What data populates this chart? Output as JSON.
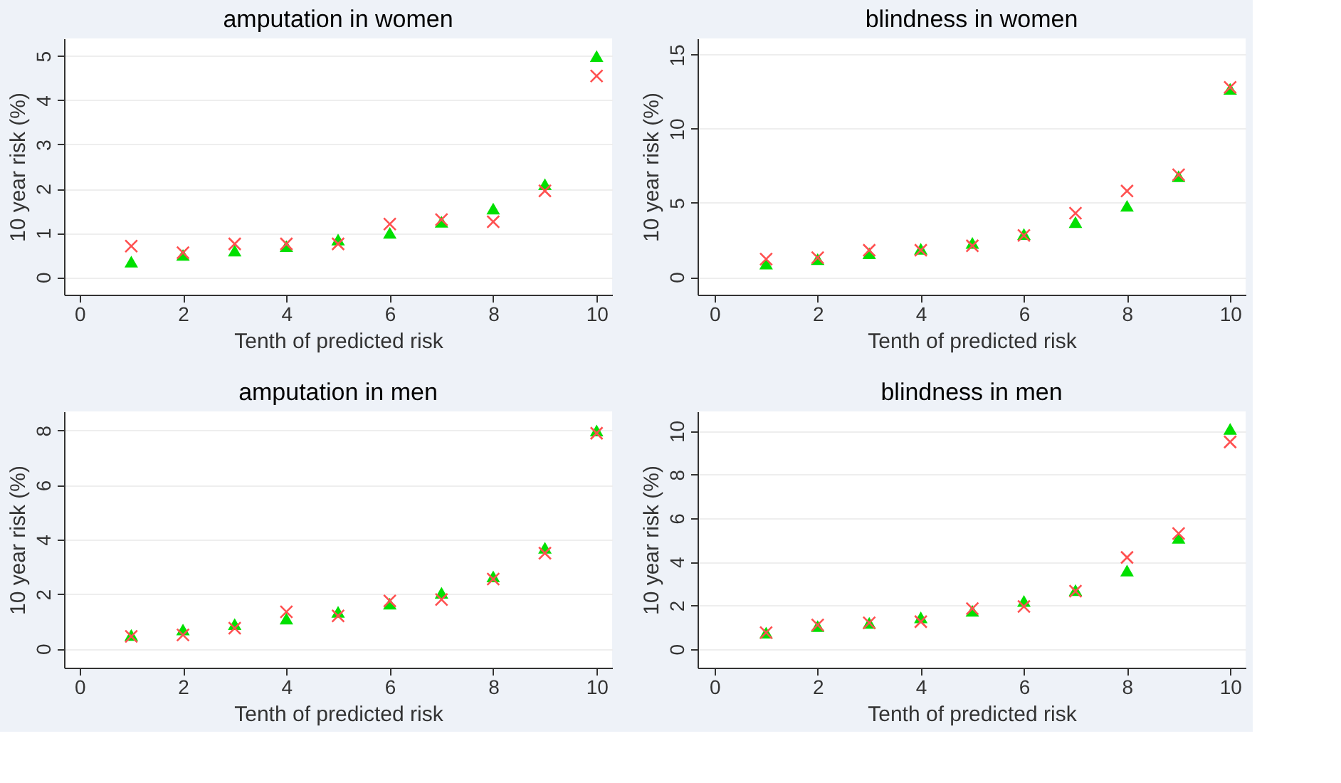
{
  "chart_data": [
    {
      "type": "scatter",
      "title": "amputation in women",
      "xlabel": "Tenth of predicted risk",
      "ylabel": "10 year risk (%)",
      "x": [
        1,
        2,
        3,
        4,
        5,
        6,
        7,
        8,
        9,
        10
      ],
      "xlim": [
        -0.3,
        10.3
      ],
      "xticks": [
        0,
        2,
        4,
        6,
        8,
        10
      ],
      "ylim": [
        -0.4,
        5.4
      ],
      "yticks": [
        0,
        1,
        2,
        3,
        4,
        5
      ],
      "grid": "y",
      "series": [
        {
          "color": "#00e000",
          "marker": "triangle",
          "values": [
            0.35,
            0.5,
            0.6,
            0.7,
            0.85,
            1.0,
            1.25,
            1.55,
            2.1,
            5.0
          ]
        },
        {
          "color": "#ff5050",
          "marker": "cross",
          "values": [
            0.7,
            0.55,
            0.75,
            0.75,
            0.75,
            1.2,
            1.3,
            1.25,
            1.95,
            4.55
          ]
        }
      ]
    },
    {
      "type": "scatter",
      "title": "blindness in women",
      "xlabel": "Tenth of predicted risk",
      "ylabel": "10 year risk (%)",
      "x": [
        1,
        2,
        3,
        4,
        5,
        6,
        7,
        8,
        9,
        10
      ],
      "xlim": [
        -0.33,
        10.3
      ],
      "xticks": [
        0,
        2,
        4,
        6,
        8,
        10
      ],
      "ylim": [
        -1.2,
        16.1
      ],
      "yticks": [
        0,
        5,
        10,
        15
      ],
      "grid": "y",
      "series": [
        {
          "color": "#00e000",
          "marker": "triangle",
          "values": [
            0.9,
            1.2,
            1.6,
            1.9,
            2.3,
            2.9,
            3.7,
            4.8,
            6.8,
            12.7
          ]
        },
        {
          "color": "#ff5050",
          "marker": "cross",
          "values": [
            1.2,
            1.3,
            1.8,
            1.8,
            2.1,
            2.8,
            4.3,
            5.8,
            6.9,
            12.8
          ]
        }
      ]
    },
    {
      "type": "scatter",
      "title": "amputation in men",
      "xlabel": "Tenth of predicted risk",
      "ylabel": "10 year risk (%)",
      "x": [
        1,
        2,
        3,
        4,
        5,
        6,
        7,
        8,
        9,
        10
      ],
      "xlim": [
        -0.3,
        10.3
      ],
      "xticks": [
        0,
        2,
        4,
        6,
        8,
        10
      ],
      "ylim": [
        -0.7,
        8.7
      ],
      "yticks": [
        0,
        2,
        4,
        6,
        8
      ],
      "grid": "y",
      "series": [
        {
          "color": "#00e000",
          "marker": "triangle",
          "values": [
            0.5,
            0.7,
            0.9,
            1.1,
            1.35,
            1.65,
            2.05,
            2.65,
            3.7,
            8.0
          ]
        },
        {
          "color": "#ff5050",
          "marker": "cross",
          "values": [
            0.45,
            0.5,
            0.75,
            1.35,
            1.2,
            1.75,
            1.8,
            2.55,
            3.5,
            7.9
          ]
        }
      ]
    },
    {
      "type": "scatter",
      "title": "blindness in men",
      "xlabel": "Tenth of predicted risk",
      "ylabel": "10 year risk (%)",
      "x": [
        1,
        2,
        3,
        4,
        5,
        6,
        7,
        8,
        9,
        10
      ],
      "xlim": [
        -0.33,
        10.3
      ],
      "xticks": [
        0,
        2,
        4,
        6,
        8,
        10
      ],
      "ylim": [
        -0.86,
        10.9
      ],
      "yticks": [
        0,
        2,
        4,
        6,
        8,
        10
      ],
      "grid": "y",
      "series": [
        {
          "color": "#00e000",
          "marker": "triangle",
          "values": [
            0.75,
            1.05,
            1.2,
            1.45,
            1.75,
            2.2,
            2.7,
            3.6,
            5.1,
            10.1
          ]
        },
        {
          "color": "#ff5050",
          "marker": "cross",
          "values": [
            0.75,
            1.1,
            1.2,
            1.25,
            1.85,
            1.95,
            2.65,
            4.2,
            5.3,
            9.5
          ]
        }
      ]
    }
  ]
}
